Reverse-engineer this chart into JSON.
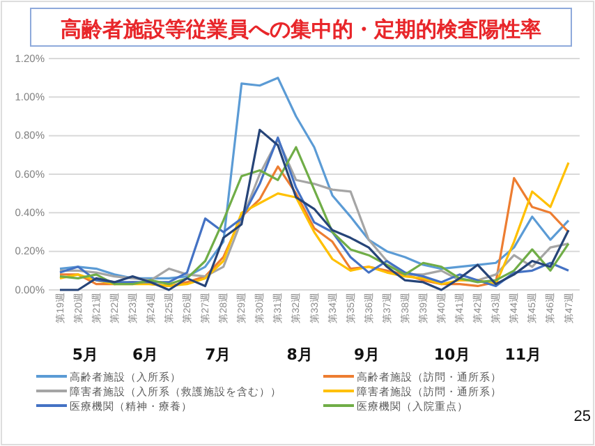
{
  "chart_data": {
    "type": "line",
    "title": "高齢者施設等従業員への集中的・定期的検査陽性率",
    "categories": [
      "第19週",
      "第20週",
      "第21週",
      "第22週",
      "第23週",
      "第24週",
      "第25週",
      "第26週",
      "第27週",
      "第28週",
      "第29週",
      "第30週",
      "第31週",
      "第32週",
      "第33週",
      "第34週",
      "第35週",
      "第36週",
      "第37週",
      "第38週",
      "第39週",
      "第40週",
      "第41週",
      "第42週",
      "第43週",
      "第44週",
      "第45週",
      "第46週",
      "第47週"
    ],
    "ylim": [
      0,
      1.2
    ],
    "yticks": [
      {
        "value": 0,
        "label": "0.00%"
      },
      {
        "value": 0.2,
        "label": "0.20%"
      },
      {
        "value": 0.4,
        "label": "0.40%"
      },
      {
        "value": 0.6,
        "label": "0.60%"
      },
      {
        "value": 0.8,
        "label": "0.80%"
      },
      {
        "value": 1.0,
        "label": "1.00%"
      },
      {
        "value": 1.2,
        "label": "1.20%"
      }
    ],
    "grid": "y",
    "legend": "bottom",
    "marker": "none",
    "line_style": "solid",
    "series": [
      {
        "name": "高齢者施設（入所系）",
        "color": "#5b9bd5",
        "values": [
          0.11,
          0.12,
          0.11,
          0.08,
          0.06,
          0.06,
          0.06,
          0.07,
          0.12,
          0.25,
          1.07,
          1.06,
          1.1,
          0.9,
          0.74,
          0.49,
          0.38,
          0.26,
          0.2,
          0.17,
          0.13,
          0.11,
          0.12,
          0.13,
          0.14,
          0.22,
          0.38,
          0.26,
          0.36
        ]
      },
      {
        "name": "高齢者施設（訪問・通所系）",
        "color": "#ed7d31",
        "values": [
          0.08,
          0.08,
          0.03,
          0.03,
          0.04,
          0.03,
          0.02,
          0.04,
          0.07,
          0.17,
          0.38,
          0.47,
          0.64,
          0.5,
          0.32,
          0.25,
          0.11,
          0.12,
          0.1,
          0.08,
          0.05,
          0.03,
          0.03,
          0.02,
          0.04,
          0.58,
          0.43,
          0.4,
          0.3
        ]
      },
      {
        "name": "障害者施設（入所系（救護施設を含む））",
        "color": "#a5a5a5",
        "values": [
          0.1,
          0.1,
          0.09,
          0.07,
          0.06,
          0.05,
          0.11,
          0.08,
          0.07,
          0.12,
          0.36,
          0.6,
          0.78,
          0.57,
          0.55,
          0.52,
          0.51,
          0.26,
          0.15,
          0.08,
          0.08,
          0.1,
          0.05,
          0.05,
          0.08,
          0.18,
          0.12,
          0.22,
          0.24
        ]
      },
      {
        "name": "障害者施設（訪問・通所系）",
        "color": "#ffc000",
        "values": [
          0.06,
          0.08,
          0.05,
          0.03,
          0.03,
          0.03,
          0.02,
          0.03,
          0.06,
          0.15,
          0.4,
          0.45,
          0.5,
          0.48,
          0.3,
          0.16,
          0.1,
          0.12,
          0.09,
          0.07,
          0.06,
          0.03,
          0.05,
          0.05,
          0.03,
          0.25,
          0.51,
          0.43,
          0.66
        ]
      },
      {
        "name": "医療機関（精神・療養）",
        "color": "#4472c4",
        "values": [
          0.09,
          0.12,
          0.05,
          0.04,
          0.04,
          0.04,
          0.04,
          0.09,
          0.37,
          0.3,
          0.37,
          0.55,
          0.79,
          0.53,
          0.35,
          0.3,
          0.17,
          0.09,
          0.15,
          0.09,
          0.07,
          0.04,
          0.08,
          0.05,
          0.02,
          0.09,
          0.1,
          0.14,
          0.1
        ]
      },
      {
        "name": "医療機関（入院重点）",
        "color": "#70ad47",
        "values": [
          0.07,
          0.06,
          0.08,
          0.03,
          0.03,
          0.05,
          0.03,
          0.06,
          0.15,
          0.36,
          0.59,
          0.62,
          0.57,
          0.74,
          0.52,
          0.3,
          0.21,
          0.18,
          0.13,
          0.08,
          0.14,
          0.12,
          0.06,
          0.04,
          0.05,
          0.1,
          0.21,
          0.1,
          0.24
        ]
      },
      {
        "color": "#264478",
        "values": [
          0,
          0,
          0.06,
          0.04,
          0.07,
          0.04,
          0,
          0.06,
          0.02,
          0.27,
          0.34,
          0.83,
          0.75,
          0.48,
          0.42,
          0.31,
          0.27,
          0.22,
          0.12,
          0.05,
          0.04,
          0,
          0.06,
          0.13,
          0.03,
          0.08,
          0.15,
          0.12,
          0.31
        ]
      }
    ],
    "annotations": [
      "5月",
      "6月",
      "7月",
      "8月",
      "9月",
      "10月",
      "11月",
      "25"
    ]
  }
}
